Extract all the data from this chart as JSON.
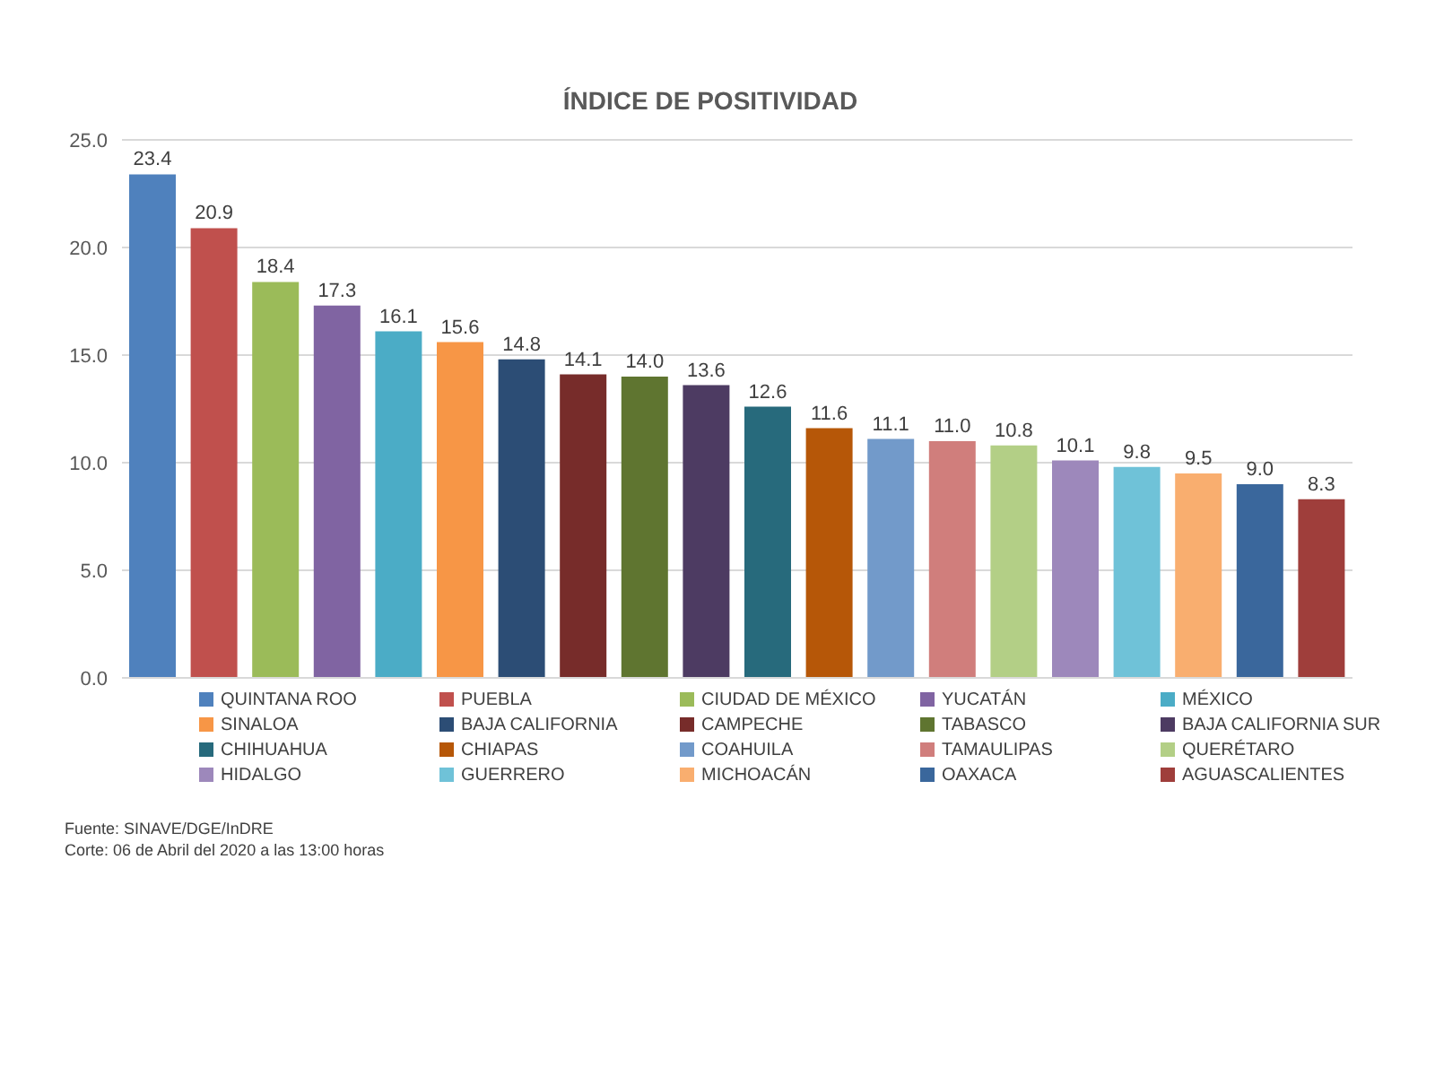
{
  "chart_data": {
    "type": "bar",
    "title": "ÍNDICE DE POSITIVIDAD",
    "categories": [
      null,
      null,
      null,
      null,
      null,
      null,
      null,
      null,
      null,
      null,
      null,
      null,
      null,
      null,
      null,
      null,
      null,
      null,
      null,
      null
    ],
    "stacked": true,
    "series": [
      {
        "name": "QUINTANA ROO",
        "color": "#4f81bd",
        "values": [
          23.4,
          null,
          null,
          null,
          null,
          null,
          null,
          null,
          null,
          null,
          null,
          null,
          null,
          null,
          null,
          null,
          null,
          null,
          null,
          null
        ]
      },
      {
        "name": "PUEBLA",
        "color": "#c0504d",
        "values": [
          null,
          20.9,
          null,
          null,
          null,
          null,
          null,
          null,
          null,
          null,
          null,
          null,
          null,
          null,
          null,
          null,
          null,
          null,
          null,
          null
        ]
      },
      {
        "name": "CIUDAD DE MÉXICO",
        "color": "#9bbb59",
        "values": [
          null,
          null,
          18.4,
          null,
          null,
          null,
          null,
          null,
          null,
          null,
          null,
          null,
          null,
          null,
          null,
          null,
          null,
          null,
          null,
          null
        ]
      },
      {
        "name": "YUCATÁN",
        "color": "#8064a2",
        "values": [
          null,
          null,
          null,
          17.3,
          null,
          null,
          null,
          null,
          null,
          null,
          null,
          null,
          null,
          null,
          null,
          null,
          null,
          null,
          null,
          null
        ]
      },
      {
        "name": "MÉXICO",
        "color": "#4bacc6",
        "values": [
          null,
          null,
          null,
          null,
          16.1,
          null,
          null,
          null,
          null,
          null,
          null,
          null,
          null,
          null,
          null,
          null,
          null,
          null,
          null,
          null
        ]
      },
      {
        "name": "SINALOA",
        "color": "#f79646",
        "values": [
          null,
          null,
          null,
          null,
          null,
          15.6,
          null,
          null,
          null,
          null,
          null,
          null,
          null,
          null,
          null,
          null,
          null,
          null,
          null,
          null
        ]
      },
      {
        "name": "BAJA CALIFORNIA",
        "color": "#2c4d75",
        "values": [
          null,
          null,
          null,
          null,
          null,
          null,
          14.8,
          null,
          null,
          null,
          null,
          null,
          null,
          null,
          null,
          null,
          null,
          null,
          null,
          null
        ]
      },
      {
        "name": "CAMPECHE",
        "color": "#772c2a",
        "values": [
          null,
          null,
          null,
          null,
          null,
          null,
          null,
          14.1,
          null,
          null,
          null,
          null,
          null,
          null,
          null,
          null,
          null,
          null,
          null,
          null
        ]
      },
      {
        "name": "TABASCO",
        "color": "#5f7530",
        "values": [
          null,
          null,
          null,
          null,
          null,
          null,
          null,
          null,
          14.0,
          null,
          null,
          null,
          null,
          null,
          null,
          null,
          null,
          null,
          null,
          null
        ]
      },
      {
        "name": "BAJA CALIFORNIA SUR",
        "color": "#4d3b62",
        "values": [
          null,
          null,
          null,
          null,
          null,
          null,
          null,
          null,
          null,
          13.6,
          null,
          null,
          null,
          null,
          null,
          null,
          null,
          null,
          null,
          null
        ]
      },
      {
        "name": "CHIHUAHUA",
        "color": "#276a7c",
        "values": [
          null,
          null,
          null,
          null,
          null,
          null,
          null,
          null,
          null,
          null,
          12.6,
          null,
          null,
          null,
          null,
          null,
          null,
          null,
          null,
          null
        ]
      },
      {
        "name": "CHIAPAS",
        "color": "#b65708",
        "values": [
          null,
          null,
          null,
          null,
          null,
          null,
          null,
          null,
          null,
          null,
          null,
          11.6,
          null,
          null,
          null,
          null,
          null,
          null,
          null,
          null
        ]
      },
      {
        "name": "COAHUILA",
        "color": "#729aca",
        "values": [
          null,
          null,
          null,
          null,
          null,
          null,
          null,
          null,
          null,
          null,
          null,
          null,
          11.1,
          null,
          null,
          null,
          null,
          null,
          null,
          null
        ]
      },
      {
        "name": "TAMAULIPAS",
        "color": "#d07e7c",
        "values": [
          null,
          null,
          null,
          null,
          null,
          null,
          null,
          null,
          null,
          null,
          null,
          null,
          null,
          11.0,
          null,
          null,
          null,
          null,
          null,
          null
        ]
      },
      {
        "name": "QUERÉTARO",
        "color": "#b3cf86",
        "values": [
          null,
          null,
          null,
          null,
          null,
          null,
          null,
          null,
          null,
          null,
          null,
          null,
          null,
          null,
          10.8,
          null,
          null,
          null,
          null,
          null
        ]
      },
      {
        "name": "HIDALGO",
        "color": "#9d88bb",
        "values": [
          null,
          null,
          null,
          null,
          null,
          null,
          null,
          null,
          null,
          null,
          null,
          null,
          null,
          null,
          null,
          10.1,
          null,
          null,
          null,
          null
        ]
      },
      {
        "name": "GUERRERO",
        "color": "#6fc2d8",
        "values": [
          null,
          null,
          null,
          null,
          null,
          null,
          null,
          null,
          null,
          null,
          null,
          null,
          null,
          null,
          null,
          null,
          9.8,
          null,
          null,
          null
        ]
      },
      {
        "name": "MICHOACÁN",
        "color": "#f9ae6f",
        "values": [
          null,
          null,
          null,
          null,
          null,
          null,
          null,
          null,
          null,
          null,
          null,
          null,
          null,
          null,
          null,
          null,
          null,
          9.5,
          null,
          null
        ]
      },
      {
        "name": "OAXACA",
        "color": "#3a679c",
        "values": [
          null,
          null,
          null,
          null,
          null,
          null,
          null,
          null,
          null,
          null,
          null,
          null,
          null,
          null,
          null,
          null,
          null,
          null,
          9.0,
          null
        ]
      },
      {
        "name": "AGUASCALIENTES",
        "color": "#9f3e3b",
        "values": [
          null,
          null,
          null,
          null,
          null,
          null,
          null,
          null,
          null,
          null,
          null,
          null,
          null,
          null,
          null,
          null,
          null,
          null,
          null,
          8.3
        ]
      }
    ],
    "value_labels": [
      "23.4",
      "20.9",
      "18.4",
      "17.3",
      "16.1",
      "15.6",
      "14.8",
      "14.1",
      "14.0",
      "13.6",
      "12.6",
      "11.6",
      "11.1",
      "11.0",
      "10.8",
      "10.1",
      "9.8",
      "9.5",
      "9.0",
      "8.3"
    ],
    "ylim": [
      0,
      25
    ],
    "yticks": [
      {
        "value": 0,
        "label": "0.0"
      },
      {
        "value": 5,
        "label": "5.0"
      },
      {
        "value": 10,
        "label": "10.0"
      },
      {
        "value": 15,
        "label": "15.0"
      },
      {
        "value": 20,
        "label": "20.0"
      },
      {
        "value": 25,
        "label": "25.0"
      }
    ],
    "grid": "y",
    "legend": "bottom",
    "tick_labels": "y",
    "annotations": [
      "Fuente: SINAVE/DGE/InDRE",
      "Corte: 06 de Abril del 2020 a las 13:00 horas"
    ]
  }
}
